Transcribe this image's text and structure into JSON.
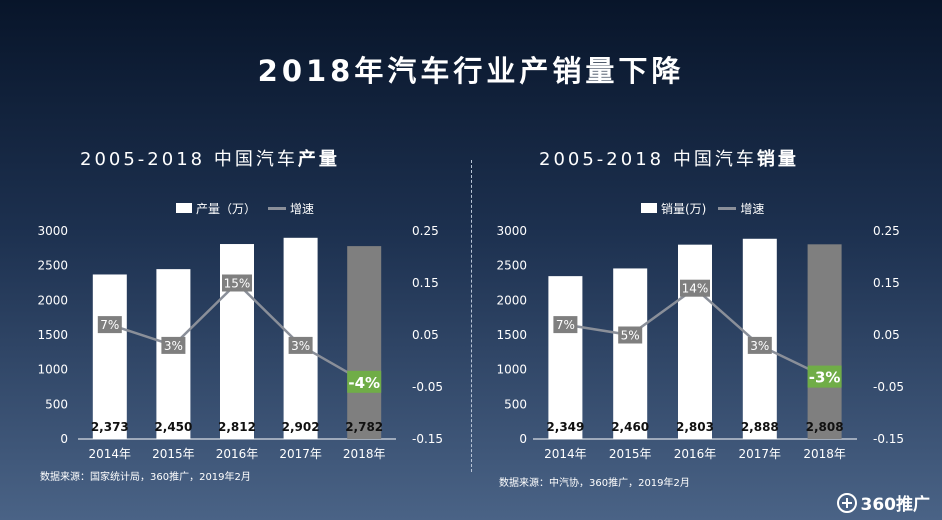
{
  "title": "2018年汽车行业产销量下降",
  "colors": {
    "bar": "#ffffff",
    "bar_last": "#7f7f7f",
    "line": "#8a8f99",
    "label_bg": "#7f7f7f",
    "highlight": "#70ad47"
  },
  "logo_text": "360推广",
  "chart_data": [
    {
      "type": "bar",
      "title_prefix": "2005-2018 中国汽车",
      "title_emphasis": "产量",
      "legend_bar": "产量（万）",
      "legend_line": "增速",
      "categories": [
        "2014年",
        "2015年",
        "2016年",
        "2017年",
        "2018年"
      ],
      "series": [
        {
          "name": "产量（万）",
          "values": [
            2373,
            2450,
            2812,
            2902,
            2782
          ],
          "labels": [
            "2,373",
            "2,450",
            "2,812",
            "2,902",
            "2,782"
          ]
        },
        {
          "name": "增速",
          "values": [
            0.07,
            0.03,
            0.15,
            0.03,
            -0.04
          ],
          "labels": [
            "7%",
            "3%",
            "15%",
            "3%",
            "-4%"
          ]
        }
      ],
      "ylim": [
        0,
        3000
      ],
      "y_ticks": [
        "0",
        "500",
        "1000",
        "1500",
        "2000",
        "2500",
        "3000"
      ],
      "y2lim": [
        -0.15,
        0.25
      ],
      "y2_ticks": [
        "-0.15",
        "-0.05",
        "0.05",
        "0.15",
        "0.25"
      ],
      "source": "数据来源：国家统计局，360推广，2019年2月"
    },
    {
      "type": "bar",
      "title_prefix": "2005-2018 中国汽车",
      "title_emphasis": "销量",
      "legend_bar": "销量(万)",
      "legend_line": "增速",
      "categories": [
        "2014年",
        "2015年",
        "2016年",
        "2017年",
        "2018年"
      ],
      "series": [
        {
          "name": "销量(万)",
          "values": [
            2349,
            2460,
            2803,
            2888,
            2808
          ],
          "labels": [
            "2,349",
            "2,460",
            "2,803",
            "2,888",
            "2,808"
          ]
        },
        {
          "name": "增速",
          "values": [
            0.07,
            0.05,
            0.14,
            0.03,
            -0.03
          ],
          "labels": [
            "7%",
            "5%",
            "14%",
            "3%",
            "-3%"
          ]
        }
      ],
      "ylim": [
        0,
        3000
      ],
      "y_ticks": [
        "0",
        "500",
        "1000",
        "1500",
        "2000",
        "2500",
        "3000"
      ],
      "y2lim": [
        -0.15,
        0.25
      ],
      "y2_ticks": [
        "-0.15",
        "-0.05",
        "0.05",
        "0.15",
        "0.25"
      ],
      "source": "数据来源：中汽协，360推广，2019年2月"
    }
  ]
}
